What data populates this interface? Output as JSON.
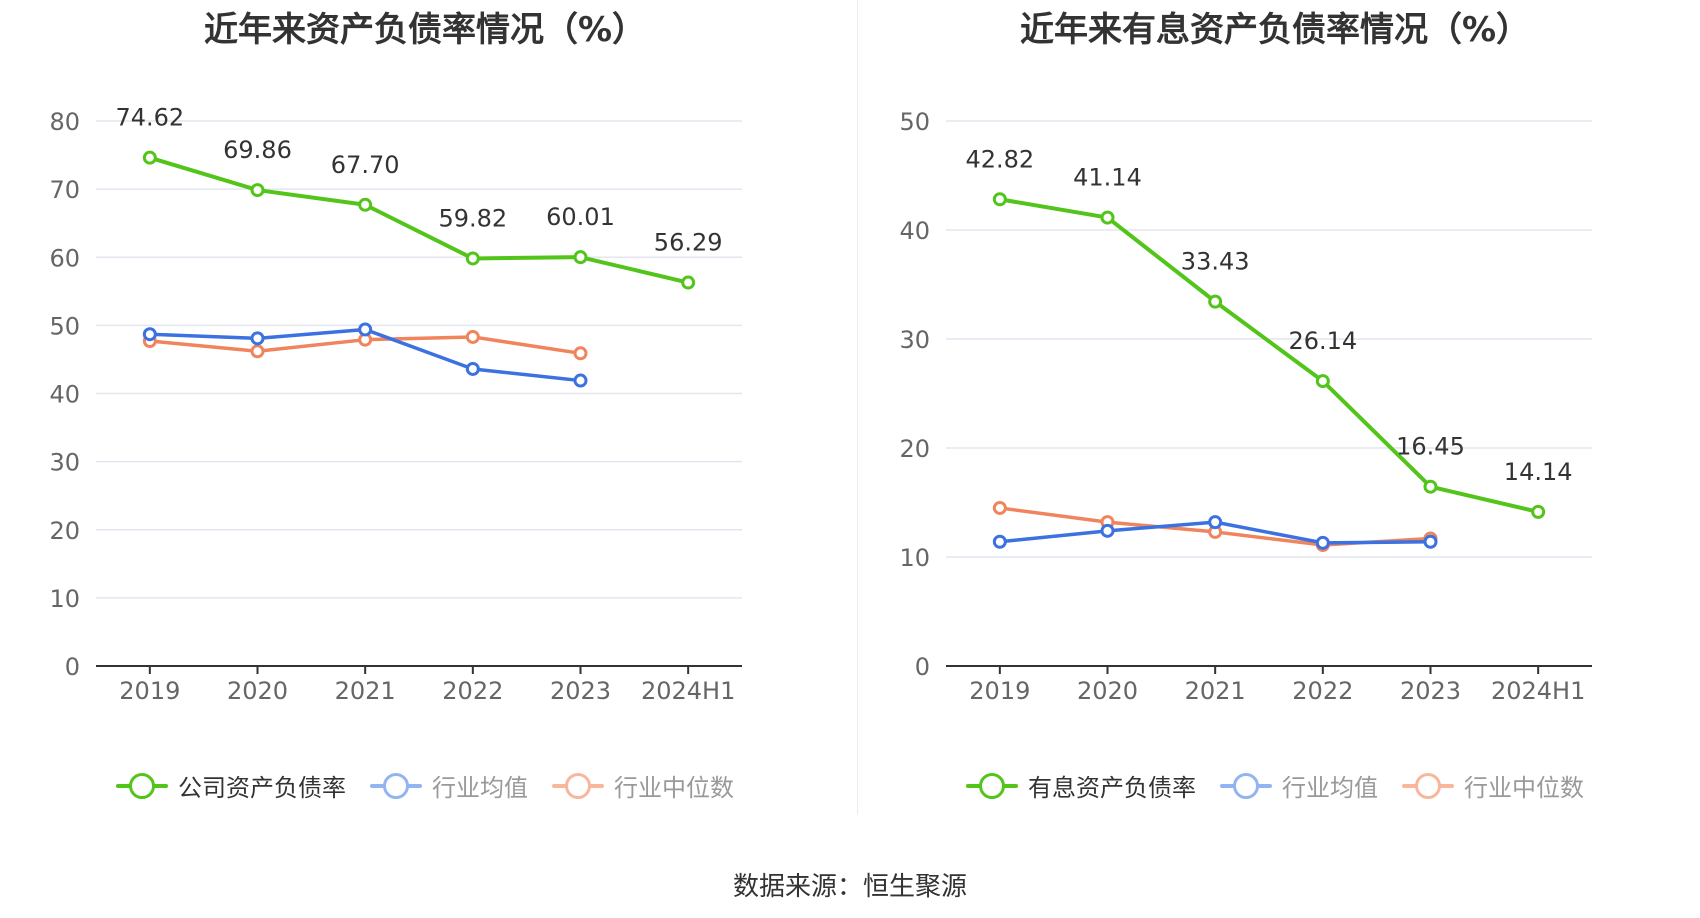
{
  "footer": {
    "source": "数据来源：恒生聚源"
  },
  "colors": {
    "company": "#52c41a",
    "industry_avg": "#3b71e0",
    "industry_median": "#f0845c",
    "legend_avg": "#93b4f3",
    "legend_median": "#f9b69a",
    "grid": "#e3e6ef",
    "axis": "#333333"
  },
  "chart_data": [
    {
      "type": "line",
      "title": "近年来资产负债率情况（%）",
      "categories": [
        "2019",
        "2020",
        "2021",
        "2022",
        "2023",
        "2024H1"
      ],
      "ylim": [
        0,
        80
      ],
      "yticks": [
        0,
        10,
        20,
        30,
        40,
        50,
        60,
        70,
        80
      ],
      "grid": true,
      "legend_position": "bottom",
      "series": [
        {
          "name": "公司资产负债率",
          "color": "#52c41a",
          "values": [
            74.62,
            69.86,
            67.7,
            59.82,
            60.01,
            56.29
          ],
          "labels": [
            "74.62",
            "69.86",
            "67.70",
            "59.82",
            "60.01",
            "56.29"
          ]
        },
        {
          "name": "行业均值",
          "color": "#3b71e0",
          "values": [
            48.7,
            48.1,
            49.4,
            43.6,
            41.9,
            null
          ]
        },
        {
          "name": "行业中位数",
          "color": "#f0845c",
          "values": [
            47.7,
            46.2,
            47.9,
            48.3,
            45.9,
            null
          ]
        }
      ]
    },
    {
      "type": "line",
      "title": "近年来有息资产负债率情况（%）",
      "categories": [
        "2019",
        "2020",
        "2021",
        "2022",
        "2023",
        "2024H1"
      ],
      "ylim": [
        0,
        50
      ],
      "yticks": [
        0,
        10,
        20,
        30,
        40,
        50
      ],
      "grid": true,
      "legend_position": "bottom",
      "series": [
        {
          "name": "有息资产负债率",
          "color": "#52c41a",
          "values": [
            42.82,
            41.14,
            33.43,
            26.14,
            16.45,
            14.14
          ],
          "labels": [
            "42.82",
            "41.14",
            "33.43",
            "26.14",
            "16.45",
            "14.14"
          ]
        },
        {
          "name": "行业均值",
          "color": "#3b71e0",
          "values": [
            11.4,
            12.4,
            13.2,
            11.3,
            11.4,
            null
          ]
        },
        {
          "name": "行业中位数",
          "color": "#f0845c",
          "values": [
            14.5,
            13.2,
            12.3,
            11.1,
            11.7,
            null
          ]
        }
      ]
    }
  ]
}
